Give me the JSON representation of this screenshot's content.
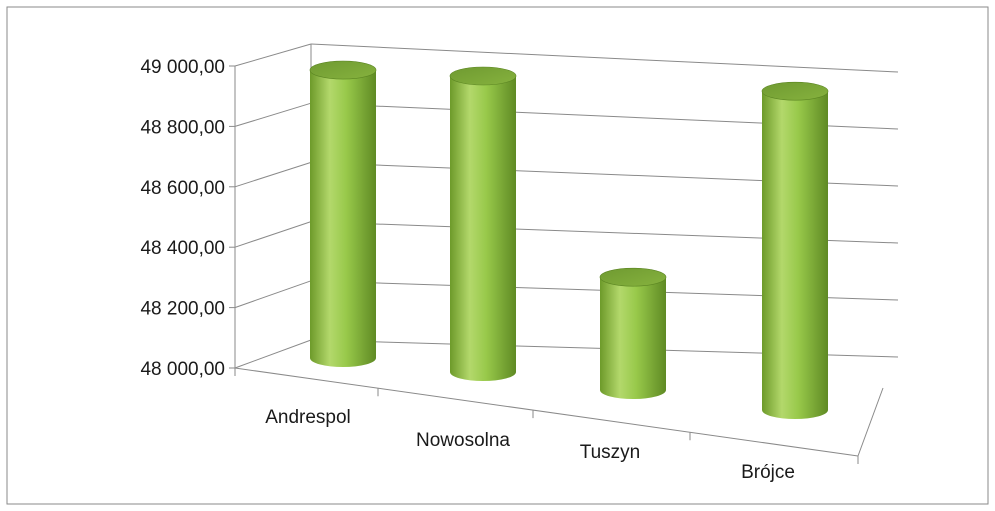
{
  "chart_data": {
    "type": "bar",
    "style": "3d-cylinder",
    "categories": [
      "Andrespol",
      "Nowosolna",
      "Tuszyn",
      "Brójce"
    ],
    "values": [
      48986,
      48990,
      48364,
      48990
    ],
    "ylim": [
      48000,
      49000
    ],
    "yticks": [
      "48 000,00",
      "48 200,00",
      "48 400,00",
      "48 600,00",
      "48 800,00",
      "49 000,00"
    ],
    "title": "",
    "xlabel": "",
    "ylabel": "",
    "grid": true,
    "legend": "none",
    "bar_color": "#8cbf3f"
  }
}
